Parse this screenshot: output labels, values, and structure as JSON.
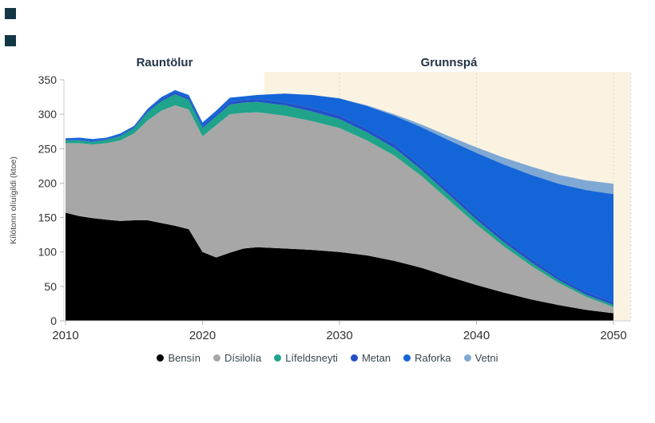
{
  "page": {
    "background": "#ffffff"
  },
  "decor": {
    "square_color": "#123644"
  },
  "chart_data": {
    "type": "area",
    "stacked": true,
    "title_actual": "Rauntölur",
    "title_forecast": "Grunnspá",
    "ylabel": "Kílótonn olíuígildi (ktoe)",
    "xlim": [
      2010,
      2050
    ],
    "ylim": [
      0,
      350
    ],
    "x_ticks": [
      2010,
      2020,
      2030,
      2040,
      2050
    ],
    "y_ticks": [
      0,
      50,
      100,
      150,
      200,
      250,
      300,
      350
    ],
    "grid": "dotted vertical lines in forecast region",
    "legend_position": "bottom",
    "forecast_start": 2024.5,
    "forecast_bg": "#faf3e2",
    "years": [
      2010,
      2011,
      2012,
      2013,
      2014,
      2015,
      2016,
      2017,
      2018,
      2019,
      2020,
      2021,
      2022,
      2023,
      2024,
      2026,
      2028,
      2030,
      2032,
      2034,
      2036,
      2038,
      2040,
      2042,
      2044,
      2046,
      2048,
      2050
    ],
    "series": [
      {
        "name": "Bensín",
        "color": "#000000",
        "values": [
          157,
          152,
          149,
          147,
          145,
          146,
          146,
          142,
          138,
          133,
          100,
          92,
          99,
          105,
          107,
          105,
          103,
          100,
          95,
          87,
          77,
          64,
          52,
          41,
          31,
          23,
          16,
          11
        ]
      },
      {
        "name": "Dísilolía",
        "color": "#a7a7a7",
        "values": [
          101,
          106,
          107,
          111,
          117,
          126,
          145,
          163,
          175,
          174,
          168,
          192,
          201,
          197,
          196,
          193,
          187,
          180,
          167,
          153,
          133,
          111,
          88,
          67,
          49,
          32,
          19,
          9
        ]
      },
      {
        "name": "Lífeldsneyti",
        "color": "#1fa38a",
        "values": [
          4,
          4,
          4,
          5,
          6,
          8,
          12,
          14,
          16,
          14,
          12,
          13,
          14,
          15,
          15,
          15,
          14,
          13,
          12,
          11,
          9,
          8,
          7,
          6,
          5,
          4,
          3,
          3
        ]
      },
      {
        "name": "Metan",
        "color": "#2150c8",
        "values": [
          1,
          1,
          1,
          1,
          1,
          2,
          2,
          3,
          3,
          3,
          3,
          3,
          4,
          4,
          4,
          4,
          5,
          5,
          5,
          5,
          5,
          5,
          5,
          5,
          5,
          4,
          4,
          4
        ]
      },
      {
        "name": "Raforka",
        "color": "#1465d8",
        "values": [
          2,
          3,
          3,
          2,
          3,
          1,
          3,
          3,
          3,
          4,
          5,
          5,
          6,
          5,
          6,
          13,
          19,
          25,
          33,
          42,
          57,
          74,
          92,
          108,
          122,
          136,
          148,
          157
        ]
      },
      {
        "name": "Vetni",
        "color": "#7fa8d4",
        "values": [
          0,
          0,
          0,
          0,
          0,
          0,
          0,
          0,
          0,
          0,
          0,
          0,
          0,
          0,
          0,
          0,
          0,
          0,
          1,
          2,
          4,
          6,
          8,
          10,
          12,
          13,
          14,
          15
        ]
      }
    ]
  }
}
